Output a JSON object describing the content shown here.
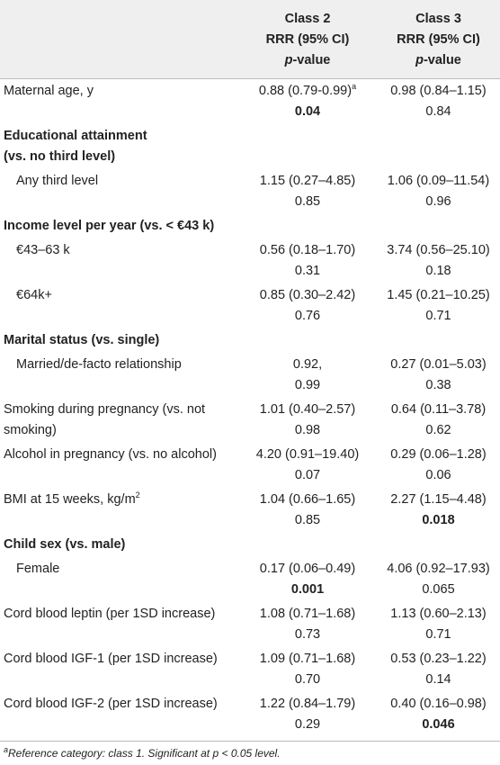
{
  "table": {
    "header": [
      {
        "lines": [
          "Class 2",
          "RRR (95% CI)"
        ],
        "p_italic": "p",
        "p_rest": "-value"
      },
      {
        "lines": [
          "Class 3",
          "RRR (95% CI)"
        ],
        "p_italic": "p",
        "p_rest": "-value"
      }
    ],
    "rows": [
      {
        "kind": "item",
        "indent": false,
        "label": "Maternal age, y",
        "cells": [
          {
            "est": "0.88 (0.79-0.99)",
            "sup": "a",
            "p": "0.04",
            "bold": true
          },
          {
            "est": "0.98 (0.84–1.15)",
            "p": "0.84",
            "bold": false
          }
        ]
      },
      {
        "kind": "section",
        "lines": [
          "Educational attainment",
          "(vs. no third level)"
        ]
      },
      {
        "kind": "item",
        "indent": true,
        "label": "Any third level",
        "cells": [
          {
            "est": "1.15 (0.27–4.85)",
            "p": "0.85",
            "bold": false
          },
          {
            "est": "1.06 (0.09–11.54)",
            "p": "0.96",
            "bold": false
          }
        ]
      },
      {
        "kind": "section",
        "lines": [
          "Income level per year (vs. < €43 k)"
        ]
      },
      {
        "kind": "item",
        "indent": true,
        "label": "€43–63 k",
        "cells": [
          {
            "est": "0.56 (0.18–1.70)",
            "p": "0.31",
            "bold": false
          },
          {
            "est": "3.74 (0.56–25.10)",
            "p": "0.18",
            "bold": false
          }
        ]
      },
      {
        "kind": "item",
        "indent": true,
        "label": "€64k+",
        "cells": [
          {
            "est": "0.85 (0.30–2.42)",
            "p": "0.76",
            "bold": false
          },
          {
            "est": "1.45 (0.21–10.25)",
            "p": "0.71",
            "bold": false
          }
        ]
      },
      {
        "kind": "section",
        "lines": [
          "Marital status (vs. single)"
        ]
      },
      {
        "kind": "item",
        "indent": true,
        "label": "Married/de-facto relationship",
        "cells": [
          {
            "est": "0.92,",
            "p": "0.99",
            "bold": false
          },
          {
            "est": "0.27 (0.01–5.03)",
            "p": "0.38",
            "bold": false
          }
        ]
      },
      {
        "kind": "item",
        "indent": false,
        "label": "Smoking during pregnancy (vs. not smoking)",
        "cells": [
          {
            "est": "1.01 (0.40–2.57)",
            "p": "0.98",
            "bold": false
          },
          {
            "est": "0.64 (0.11–3.78)",
            "p": "0.62",
            "bold": false
          }
        ]
      },
      {
        "kind": "item",
        "indent": false,
        "label": "Alcohol in pregnancy (vs. no alcohol)",
        "cells": [
          {
            "est": "4.20 (0.91–19.40)",
            "p": "0.07",
            "bold": false
          },
          {
            "est": "0.29 (0.06–1.28)",
            "p": "0.06",
            "bold": false
          }
        ]
      },
      {
        "kind": "item",
        "indent": false,
        "label": "BMI at 15 weeks, kg/m",
        "label_sup": "2",
        "cells": [
          {
            "est": "1.04 (0.66–1.65)",
            "p": "0.85",
            "bold": false
          },
          {
            "est": "2.27 (1.15–4.48)",
            "p": "0.018",
            "bold": true
          }
        ]
      },
      {
        "kind": "section",
        "lines": [
          "Child sex (vs. male)"
        ]
      },
      {
        "kind": "item",
        "indent": true,
        "label": "Female",
        "cells": [
          {
            "est": "0.17 (0.06–0.49)",
            "p": "0.001",
            "bold": true
          },
          {
            "est": "4.06 (0.92–17.93)",
            "p": "0.065",
            "bold": false
          }
        ]
      },
      {
        "kind": "item",
        "indent": false,
        "label": "Cord blood leptin (per 1SD increase)",
        "cells": [
          {
            "est": "1.08 (0.71–1.68)",
            "p": "0.73",
            "bold": false
          },
          {
            "est": "1.13 (0.60–2.13)",
            "p": "0.71",
            "bold": false
          }
        ]
      },
      {
        "kind": "item",
        "indent": false,
        "label": "Cord blood IGF-1 (per 1SD increase)",
        "cells": [
          {
            "est": "1.09 (0.71–1.68)",
            "p": "0.70",
            "bold": false
          },
          {
            "est": "0.53 (0.23–1.22)",
            "p": "0.14",
            "bold": false
          }
        ]
      },
      {
        "kind": "item",
        "indent": false,
        "label": "Cord blood IGF-2 (per 1SD increase)",
        "cells": [
          {
            "est": "1.22 (0.84–1.79)",
            "p": "0.29",
            "bold": false
          },
          {
            "est": "0.40 (0.16–0.98)",
            "p": "0.046",
            "bold": true
          }
        ]
      }
    ],
    "footnote": {
      "sup": "a",
      "text": "Reference category: class 1. Significant at ",
      "p": "p",
      "rest": " < 0.05 level."
    }
  }
}
